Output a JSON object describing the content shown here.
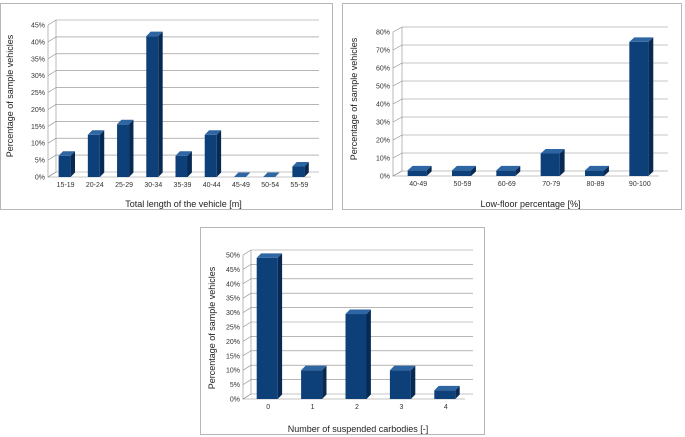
{
  "colors": {
    "bar_front": "#0d3f78",
    "bar_side": "#082a52",
    "bar_top": "#2e65a3"
  },
  "chart_data": [
    {
      "type": "bar",
      "title": "",
      "xlabel": "Total length of the vehicle [m]",
      "ylabel": "Percentage of sample vehicles",
      "categories": [
        "15-19",
        "20-24",
        "25-29",
        "30-34",
        "35-39",
        "40-44",
        "45-49",
        "50-54",
        "55-59"
      ],
      "values": [
        6.3,
        12.5,
        15.6,
        41.7,
        6.3,
        12.5,
        0,
        0,
        3.1
      ],
      "ylim": [
        0,
        45
      ],
      "ystep": 5,
      "yticks": [
        "0%",
        "5%",
        "10%",
        "15%",
        "20%",
        "25%",
        "30%",
        "35%",
        "40%",
        "45%"
      ],
      "grid": true,
      "legend": "none"
    },
    {
      "type": "bar",
      "title": "",
      "xlabel": "Low-floor percentage [%]",
      "ylabel": "Percentage of sample vehicles",
      "categories": [
        "40-49",
        "50-59",
        "60-69",
        "70-79",
        "80-89",
        "90-100"
      ],
      "values": [
        3.1,
        3.1,
        3.1,
        12.5,
        3.1,
        74.5
      ],
      "ylim": [
        0,
        80
      ],
      "ystep": 10,
      "yticks": [
        "0%",
        "10%",
        "20%",
        "30%",
        "40%",
        "50%",
        "60%",
        "70%",
        "80%"
      ],
      "grid": true,
      "legend": "none"
    },
    {
      "type": "bar",
      "title": "",
      "xlabel": "Number of suspended carbodies [-]",
      "ylabel": "Percentage of sample vehicles",
      "categories": [
        "0",
        "1",
        "2",
        "3",
        "4"
      ],
      "values": [
        49,
        10,
        29.5,
        10,
        3
      ],
      "ylim": [
        0,
        50
      ],
      "ystep": 5,
      "yticks": [
        "0%",
        "5%",
        "10%",
        "15%",
        "20%",
        "25%",
        "30%",
        "35%",
        "40%",
        "45%",
        "50%"
      ],
      "grid": true,
      "legend": "none"
    }
  ]
}
